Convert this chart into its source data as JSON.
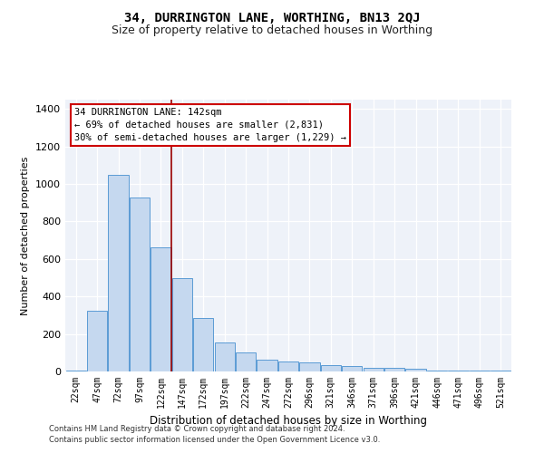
{
  "title1": "34, DURRINGTON LANE, WORTHING, BN13 2QJ",
  "title2": "Size of property relative to detached houses in Worthing",
  "xlabel": "Distribution of detached houses by size in Worthing",
  "ylabel": "Number of detached properties",
  "footer1": "Contains HM Land Registry data © Crown copyright and database right 2024.",
  "footer2": "Contains public sector information licensed under the Open Government Licence v3.0.",
  "annotation_line1": "34 DURRINGTON LANE: 142sqm",
  "annotation_line2": "← 69% of detached houses are smaller (2,831)",
  "annotation_line3": "30% of semi-detached houses are larger (1,229) →",
  "categories": [
    "22sqm",
    "47sqm",
    "72sqm",
    "97sqm",
    "122sqm",
    "147sqm",
    "172sqm",
    "197sqm",
    "222sqm",
    "247sqm",
    "272sqm",
    "296sqm",
    "321sqm",
    "346sqm",
    "371sqm",
    "396sqm",
    "421sqm",
    "446sqm",
    "471sqm",
    "496sqm",
    "521sqm"
  ],
  "values": [
    5,
    325,
    1050,
    930,
    660,
    500,
    285,
    155,
    100,
    65,
    55,
    50,
    35,
    30,
    20,
    18,
    15,
    5,
    5,
    5,
    5
  ],
  "bar_color": "#c5d8ef",
  "bar_edge_color": "#5b9bd5",
  "red_line_index": 4.5,
  "red_line_color": "#990000",
  "annotation_box_facecolor": "#ffffff",
  "annotation_box_edgecolor": "#cc0000",
  "plot_bg_color": "#eef2f9",
  "grid_color": "#ffffff",
  "ylim": [
    0,
    1450
  ],
  "yticks": [
    0,
    200,
    400,
    600,
    800,
    1000,
    1200,
    1400
  ],
  "title1_fontsize": 10,
  "title2_fontsize": 9,
  "xlabel_fontsize": 8.5,
  "ylabel_fontsize": 8,
  "tick_fontsize": 8,
  "xtick_fontsize": 7,
  "annotation_fontsize": 7.5,
  "footer_fontsize": 6
}
